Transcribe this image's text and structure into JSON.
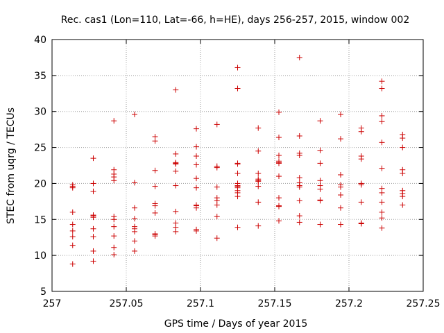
{
  "chart_data": {
    "type": "scatter",
    "title": "Rec. cas1 (Lon=110, Lat=-66, h=HE), days 256-257, 2015, window 002",
    "xlabel": "GPS time / Days of year 2015",
    "ylabel": "STEC from uqrg / TECUs",
    "xlim": [
      257,
      257.25
    ],
    "ylim": [
      5,
      40
    ],
    "x_ticks": [
      "257",
      "257.05",
      "257.1",
      "257.15",
      "257.2",
      "257.25"
    ],
    "y_ticks": [
      "5",
      "10",
      "15",
      "20",
      "25",
      "30",
      "35",
      "40"
    ],
    "grid": true,
    "marker": "+",
    "color": "#cc0000",
    "series": [
      {
        "x": [
          257.0139,
          257.0139,
          257.0139,
          257.0139,
          257.0139,
          257.0139,
          257.0139,
          257.0139,
          257.0139,
          257.0278,
          257.0278,
          257.0278,
          257.0278,
          257.0278,
          257.0278,
          257.0278,
          257.0278,
          257.0278,
          257.0278,
          257.0417,
          257.0417,
          257.0417,
          257.0417,
          257.0417,
          257.0417,
          257.0417,
          257.0417,
          257.0417,
          257.0417,
          257.0417,
          257.0556,
          257.0556,
          257.0556,
          257.0556,
          257.0556,
          257.0556,
          257.0556,
          257.0556,
          257.0556,
          257.0694,
          257.0694,
          257.0694,
          257.0694,
          257.0694,
          257.0694,
          257.0694,
          257.0694,
          257.0694,
          257.0694,
          257.0833,
          257.0833,
          257.0833,
          257.0833,
          257.0833,
          257.0833,
          257.0833,
          257.0833,
          257.0833,
          257.0833,
          257.0833,
          257.0972,
          257.0972,
          257.0972,
          257.0972,
          257.0972,
          257.0972,
          257.0972,
          257.0972,
          257.0972,
          257.0972,
          257.0972,
          257.1111,
          257.1111,
          257.1111,
          257.1111,
          257.1111,
          257.1111,
          257.1111,
          257.1111,
          257.1111,
          257.125,
          257.125,
          257.125,
          257.125,
          257.125,
          257.125,
          257.125,
          257.125,
          257.125,
          257.125,
          257.125,
          257.125,
          257.125,
          257.1389,
          257.1389,
          257.1389,
          257.1389,
          257.1389,
          257.1389,
          257.1389,
          257.1389,
          257.1389,
          257.1528,
          257.1528,
          257.1528,
          257.1528,
          257.1528,
          257.1528,
          257.1528,
          257.1528,
          257.1528,
          257.1528,
          257.1528,
          257.1667,
          257.1667,
          257.1667,
          257.1667,
          257.1667,
          257.1667,
          257.1667,
          257.1667,
          257.1667,
          257.1667,
          257.1667,
          257.1806,
          257.1806,
          257.1806,
          257.1806,
          257.1806,
          257.1806,
          257.1806,
          257.1806,
          257.1806,
          257.1944,
          257.1944,
          257.1944,
          257.1944,
          257.1944,
          257.1944,
          257.1944,
          257.1944,
          257.2083,
          257.2083,
          257.2083,
          257.2083,
          257.2083,
          257.2083,
          257.2083,
          257.2083,
          257.2083,
          257.2222,
          257.2222,
          257.2222,
          257.2222,
          257.2222,
          257.2222,
          257.2222,
          257.2222,
          257.2222,
          257.2222,
          257.2222,
          257.2222,
          257.2361,
          257.2361,
          257.2361,
          257.2361,
          257.2361,
          257.2361,
          257.2361,
          257.2361,
          257.2361
        ],
        "y": [
          8.8,
          11.4,
          12.6,
          13.4,
          14.3,
          16.0,
          19.4,
          19.6,
          19.8,
          9.2,
          10.6,
          12.6,
          13.7,
          15.3,
          15.6,
          18.9,
          20.0,
          23.5,
          15.5,
          10.1,
          11.1,
          12.7,
          14.0,
          15.0,
          15.4,
          20.4,
          20.9,
          21.3,
          21.9,
          28.7,
          10.6,
          12.0,
          13.3,
          13.7,
          15.1,
          16.6,
          20.1,
          29.6,
          14.0,
          12.7,
          12.9,
          15.9,
          17.2,
          19.6,
          21.8,
          25.9,
          26.5,
          13.0,
          16.9,
          13.3,
          13.9,
          14.5,
          16.1,
          19.7,
          21.7,
          22.8,
          22.9,
          24.1,
          33.0,
          22.7,
          13.4,
          13.6,
          16.6,
          17.0,
          19.4,
          20.7,
          22.6,
          23.8,
          25.1,
          27.6,
          16.9,
          12.4,
          15.4,
          17.0,
          17.6,
          18.0,
          19.5,
          22.2,
          22.4,
          28.2,
          13.9,
          18.2,
          18.7,
          19.4,
          19.7,
          20.0,
          21.4,
          22.7,
          33.2,
          36.1,
          19.0,
          19.6,
          22.8,
          14.1,
          17.4,
          19.6,
          20.3,
          20.6,
          21.4,
          24.5,
          27.7,
          20.4,
          14.8,
          16.8,
          16.9,
          18.0,
          21.0,
          22.9,
          23.1,
          23.9,
          26.4,
          29.9,
          22.8,
          14.6,
          15.5,
          17.6,
          19.5,
          20.1,
          20.8,
          23.9,
          24.2,
          26.6,
          37.5,
          19.7,
          14.3,
          17.6,
          17.7,
          19.2,
          19.7,
          20.4,
          22.8,
          24.6,
          28.7,
          14.3,
          16.6,
          18.4,
          19.5,
          19.8,
          21.2,
          26.2,
          29.6,
          14.4,
          14.5,
          17.4,
          19.8,
          20.0,
          23.4,
          23.8,
          27.2,
          27.7,
          13.8,
          15.2,
          17.4,
          18.7,
          19.3,
          22.1,
          25.7,
          28.6,
          29.4,
          33.2,
          34.2,
          16.0,
          17.0,
          18.2,
          18.6,
          19.0,
          21.4,
          21.9,
          25.0,
          26.3,
          26.8
        ]
      }
    ]
  }
}
